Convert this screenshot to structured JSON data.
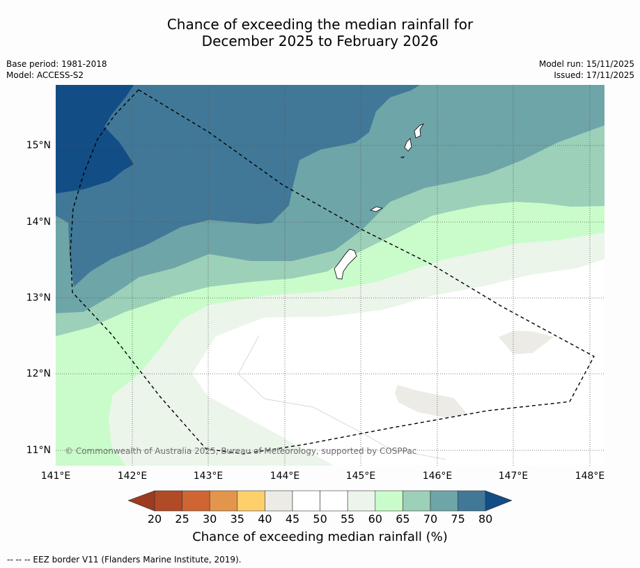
{
  "title_line1": "Chance of exceeding the median rainfall for",
  "title_line2": "December 2025 to February 2026",
  "meta_left": {
    "base_period": "Base period: 1981-2018",
    "model": "Model: ACCESS-S2"
  },
  "meta_right": {
    "model_run": "Model run: 15/11/2025",
    "issued": "Issued: 17/11/2025"
  },
  "copyright": "© Commonwealth of Australia 2025, Bureau of Meteorology, supported by COSPPac",
  "map": {
    "lat_labels": [
      "15°N",
      "14°N",
      "13°N",
      "12°N",
      "11°N"
    ],
    "lon_labels": [
      "141°E",
      "142°E",
      "143°E",
      "144°E",
      "145°E",
      "146°E",
      "147°E",
      "148°E"
    ],
    "lon_range": [
      141,
      148.2
    ],
    "lat_range": [
      10.8,
      15.78
    ],
    "gridlines": true
  },
  "colorbar": {
    "ticks": [
      "20",
      "25",
      "30",
      "35",
      "40",
      "45",
      "50",
      "55",
      "60",
      "65",
      "70",
      "75",
      "80"
    ],
    "colors": {
      "below_20": "#9c3b1f",
      "c20_25": "#b14a26",
      "c25_30": "#ce6533",
      "c30_35": "#e3964b",
      "c35_40": "#fdd06b",
      "c40_45": "#edebe6",
      "c45_50": "#ffffff",
      "c50_55": "#ffffff",
      "c55_60": "#ebf5ea",
      "c60_65": "#c9fcca",
      "c65_70": "#9cd0b8",
      "c70_75": "#6ea5a8",
      "c75_80": "#417897",
      "above_80": "#134d86"
    },
    "label": "Chance of exceeding median rainfall (%)"
  },
  "footnote": "--  --  -- EEZ border V11 (Flanders Marine Institute, 2019)."
}
